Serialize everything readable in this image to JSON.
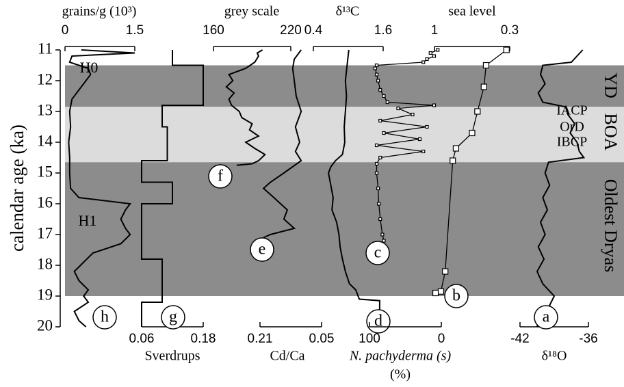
{
  "chart_data": {
    "type": "line",
    "ylabel": "calendar age (ka)",
    "ylim": [
      11,
      20
    ],
    "yticks": [
      11,
      12,
      13,
      14,
      15,
      16,
      17,
      18,
      19,
      20
    ],
    "bands": [
      {
        "from": 11.5,
        "to": 12.85,
        "color": "#8c8c8c"
      },
      {
        "from": 12.85,
        "to": 14.65,
        "color": "#dcdcdc"
      },
      {
        "from": 14.65,
        "to": 19.0,
        "color": "#8c8c8c"
      }
    ],
    "annotations": [
      "H0",
      "H1",
      "IACP",
      "OrD",
      "IBCP",
      "YD",
      "BOA",
      "Oldest Dryas"
    ],
    "panels": [
      {
        "label": "grains/g (10³)",
        "axis": "top",
        "letter": "h",
        "xlim": [
          0,
          1.5
        ],
        "xticks": [
          0,
          1.5
        ],
        "style": "line",
        "ages": [
          11,
          11.1,
          11.2,
          11.4,
          11.6,
          11.8,
          12,
          12.3,
          12.6,
          13,
          13.5,
          14,
          14.5,
          15,
          15.5,
          15.8,
          16,
          16.2,
          16.5,
          16.8,
          17,
          17.3,
          17.6,
          17.9,
          18.2,
          18.5,
          18.8,
          19,
          19.2,
          19.5,
          19.8,
          20
        ],
        "values": [
          0.35,
          1.5,
          0.15,
          0.1,
          0.5,
          0.55,
          0.45,
          0.3,
          0.15,
          0.1,
          0.12,
          0.08,
          0.1,
          0.1,
          0.12,
          0.3,
          1.4,
          1.3,
          1.2,
          1.3,
          1.4,
          1.2,
          0.6,
          0.4,
          0.2,
          0.3,
          0.5,
          0.4,
          0.5,
          0.2,
          0.3,
          0.45
        ]
      },
      {
        "label": "Sverdrups",
        "axis": "bottom",
        "letter": "g",
        "xlim": [
          0.06,
          0.18
        ],
        "xticks": [
          0.06,
          0.18
        ],
        "style": "line",
        "ages": [
          11,
          11.5,
          11.5,
          12.8,
          12.8,
          13.5,
          13.5,
          14.6,
          14.6,
          15.3,
          15.3,
          16,
          16,
          17.8,
          17.8,
          19.2,
          19.2,
          20
        ],
        "values": [
          0.12,
          0.12,
          0.18,
          0.18,
          0.1,
          0.1,
          0.11,
          0.11,
          0.06,
          0.06,
          0.12,
          0.12,
          0.06,
          0.06,
          0.1,
          0.1,
          0.06,
          0.06
        ]
      },
      {
        "label": "grey scale",
        "axis": "top",
        "letter": "f",
        "xlim": [
          160,
          220
        ],
        "xticks": [
          160,
          220
        ],
        "style": "line",
        "ages": [
          11,
          11.1,
          11.2,
          11.4,
          11.6,
          11.8,
          12,
          12.2,
          12.4,
          12.6,
          12.8,
          13,
          13.2,
          13.4,
          13.6,
          13.8,
          14,
          14.2,
          14.4,
          14.6,
          14.7,
          14.75
        ],
        "values": [
          198,
          194,
          195,
          192,
          185,
          172,
          175,
          170,
          176,
          172,
          174,
          180,
          182,
          190,
          188,
          195,
          185,
          192,
          200,
          195,
          190,
          178
        ]
      },
      {
        "label": "Cd/Ca",
        "axis": "bottom",
        "letter": "e",
        "xlim": [
          0.21,
          0.05
        ],
        "xticks": [
          0.21,
          0.05
        ],
        "style": "line",
        "ages": [
          11,
          11.3,
          11.6,
          12,
          12.5,
          13,
          13.5,
          14,
          14.3,
          14.6,
          15,
          15.3,
          15.5,
          15.8,
          16.2,
          16.5,
          16.8,
          17,
          17.1
        ],
        "values": [
          0.103,
          0.121,
          0.125,
          0.121,
          0.116,
          0.103,
          0.118,
          0.107,
          0.118,
          0.103,
          0.148,
          0.183,
          0.201,
          0.174,
          0.139,
          0.148,
          0.121,
          0.183,
          0.201
        ]
      },
      {
        "label": "δ¹³C",
        "axis": "top",
        "letter": "d",
        "xlim": [
          0.4,
          1.6
        ],
        "xticks": [
          0.4,
          1.6
        ],
        "style": "line",
        "ages": [
          11,
          11.5,
          12,
          12.5,
          13,
          13.5,
          14,
          14.4,
          14.6,
          14.8,
          15,
          15.4,
          15.8,
          16.2,
          16.6,
          17,
          17.4,
          17.8,
          18.2,
          18.6,
          18.8,
          19.1,
          19.15,
          19.5,
          20
        ],
        "values": [
          1.01,
          0.98,
          0.95,
          0.97,
          0.95,
          0.93,
          0.94,
          0.9,
          0.78,
          0.7,
          0.66,
          0.7,
          0.74,
          0.72,
          0.8,
          0.84,
          0.86,
          0.9,
          0.95,
          1.02,
          1.13,
          1.19,
          1.54,
          1.54,
          1.54
        ]
      },
      {
        "label": "N. pachyderma (s)",
        "unit": "(%)",
        "axis": "bottom",
        "letter": "c",
        "xlim": [
          100,
          0
        ],
        "xticks": [
          100,
          0
        ],
        "style": "markers",
        "ages": [
          11,
          11.1,
          11.2,
          11.3,
          11.4,
          11.5,
          11.6,
          11.8,
          12,
          12.3,
          12.5,
          12.7,
          12.8,
          12.9,
          13.1,
          13.3,
          13.5,
          13.7,
          13.9,
          14.1,
          14.3,
          14.5,
          14.7,
          15,
          15.5,
          16,
          16.5,
          17,
          17.2
        ],
        "values": [
          5,
          15,
          10,
          20,
          25,
          90,
          92,
          90,
          88,
          85,
          80,
          75,
          10,
          60,
          40,
          85,
          20,
          80,
          30,
          90,
          25,
          85,
          90,
          90,
          88,
          87,
          85,
          82,
          80
        ]
      },
      {
        "label": "sea level",
        "axis": "top",
        "letter": "b",
        "xlim": [
          1,
          0.3
        ],
        "xticks": [
          1,
          0.3
        ],
        "style": "markers",
        "ages": [
          11,
          11.5,
          12.2,
          13,
          13.7,
          14.2,
          14.6,
          18.2,
          18.85,
          18.9
        ],
        "values": [
          0.33,
          0.52,
          0.54,
          0.6,
          0.65,
          0.8,
          0.83,
          0.9,
          0.94,
          0.99
        ]
      },
      {
        "label": "δ¹⁸O",
        "axis": "bottom",
        "letter": "a",
        "xlim": [
          -42,
          -36
        ],
        "xticks": [
          -42,
          -36
        ],
        "style": "line",
        "ages": [
          11,
          11.2,
          11.4,
          11.5,
          11.8,
          12.1,
          12.4,
          12.7,
          12.85,
          13.1,
          13.4,
          13.7,
          14,
          14.3,
          14.5,
          14.65,
          15,
          15.4,
          15.8,
          16.2,
          16.6,
          17,
          17.4,
          17.8,
          18.2,
          18.6,
          19,
          19.3,
          19.6,
          20
        ],
        "values": [
          -36.5,
          -37,
          -37.5,
          -40,
          -40.2,
          -39.8,
          -40.4,
          -40,
          -38,
          -37.8,
          -37.2,
          -37.6,
          -37,
          -36.8,
          -36.4,
          -39.5,
          -39.8,
          -39.4,
          -40,
          -39.6,
          -40.2,
          -39.8,
          -40.4,
          -39.9,
          -40.5,
          -40,
          -39,
          -39.4,
          -40.2,
          -40.5
        ]
      }
    ]
  }
}
